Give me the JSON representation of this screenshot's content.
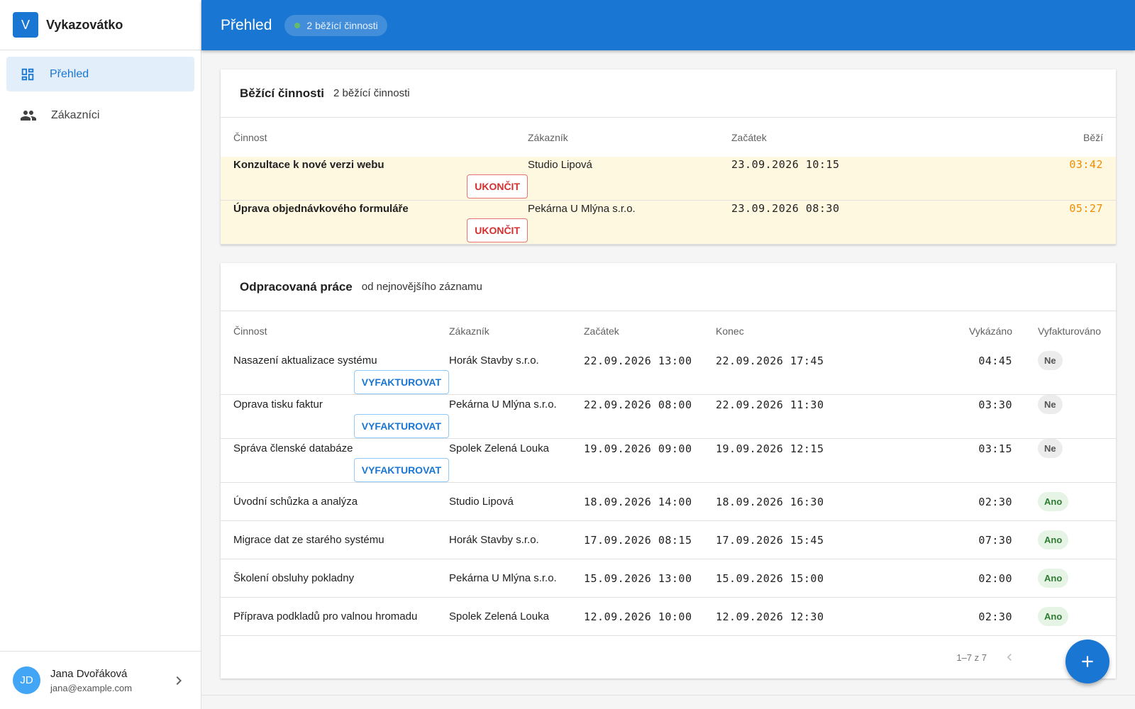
{
  "app": {
    "logo": "V",
    "name": "Vykazovátko"
  },
  "nav": [
    {
      "label": "Přehled",
      "active": true
    },
    {
      "label": "Zákazníci",
      "active": false
    }
  ],
  "user": {
    "initials": "JD",
    "name": "Jana Dvořáková",
    "email": "jana@example.com"
  },
  "header": {
    "title": "Přehled",
    "badge": "2 běžící činnosti"
  },
  "running": {
    "title": "Běžící činnosti",
    "subtitle": "2 běžící činnosti",
    "columns": [
      "Činnost",
      "Zákazník",
      "Začátek",
      "Běží"
    ],
    "rows": [
      {
        "cells": [
          "Konzultace k nové verzi webu",
          "Studio Lipová",
          "23.09.2026 10:15",
          "03:42"
        ],
        "action": "UKONČIT"
      },
      {
        "cells": [
          "Úprava objednávkového formuláře",
          "Pekárna U Mlýna s.r.o.",
          "23.09.2026 08:30",
          "05:27"
        ],
        "action": "UKONČIT"
      }
    ]
  },
  "work": {
    "title": "Odpracovaná práce",
    "subtitle": "od nejnovějšího záznamu",
    "columns": [
      "Činnost",
      "Zákazník",
      "Začátek",
      "Konec",
      "Vykázáno",
      "Vyfakturováno"
    ],
    "rows": [
      {
        "cells": [
          "Nasazení aktualizace systému",
          "Horák Stavby s.r.o.",
          "22.09.2026 13:00",
          "22.09.2026 17:45",
          "04:45",
          "Ne"
        ],
        "action": "VYFAKTUROVAT"
      },
      {
        "cells": [
          "Oprava tisku faktur",
          "Pekárna U Mlýna s.r.o.",
          "22.09.2026 08:00",
          "22.09.2026 11:30",
          "03:30",
          "Ne"
        ],
        "action": "VYFAKTUROVAT"
      },
      {
        "cells": [
          "Správa členské databáze",
          "Spolek Zelená Louka",
          "19.09.2026 09:00",
          "19.09.2026 12:15",
          "03:15",
          "Ne"
        ],
        "action": "VYFAKTUROVAT"
      },
      {
        "cells": [
          "Úvodní schůzka a analýza",
          "Studio Lipová",
          "18.09.2026 14:00",
          "18.09.2026 16:30",
          "02:30",
          "Ano"
        ]
      },
      {
        "cells": [
          "Migrace dat ze starého systému",
          "Horák Stavby s.r.o.",
          "17.09.2026 08:15",
          "17.09.2026 15:45",
          "07:30",
          "Ano"
        ]
      },
      {
        "cells": [
          "Školení obsluhy pokladny",
          "Pekárna U Mlýna s.r.o.",
          "15.09.2026 13:00",
          "15.09.2026 15:00",
          "02:00",
          "Ano"
        ]
      },
      {
        "cells": [
          "Příprava podkladů pro valnou hromadu",
          "Spolek Zelená Louka",
          "12.09.2026 10:00",
          "12.09.2026 12:30",
          "02:30",
          "Ano"
        ]
      }
    ],
    "pagination": "1–7 z 7"
  }
}
